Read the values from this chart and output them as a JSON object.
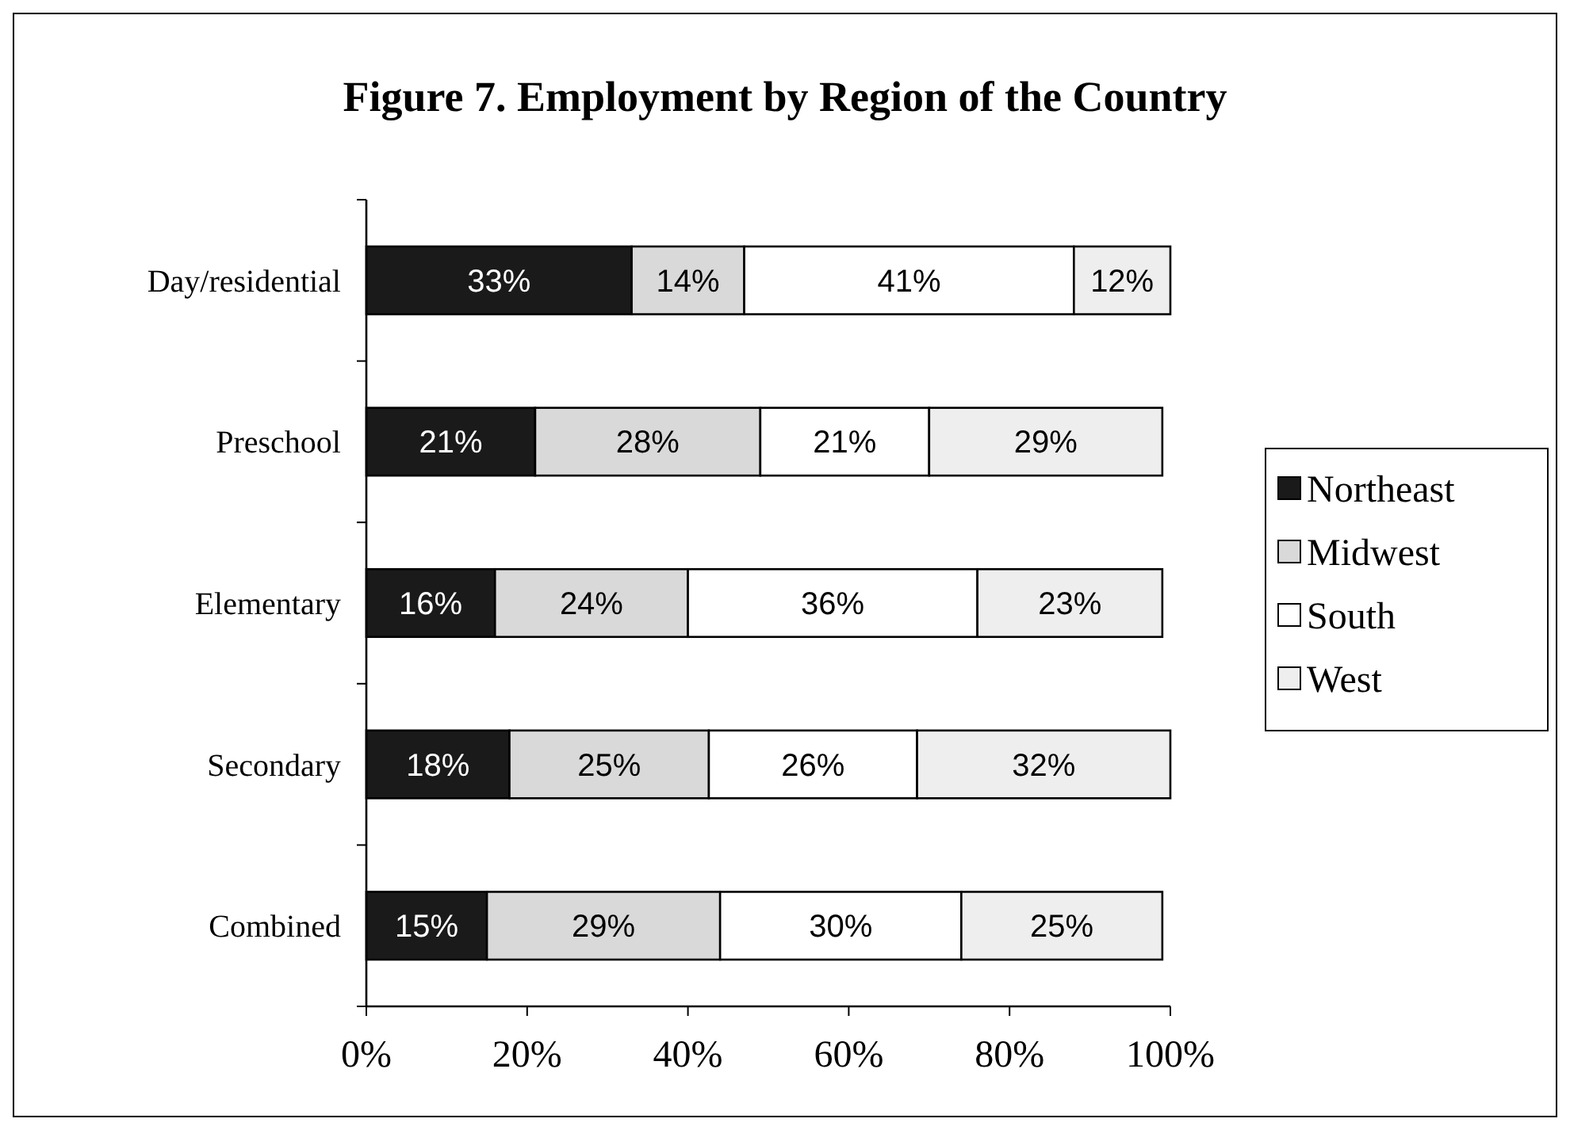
{
  "chart_data": {
    "type": "bar",
    "orientation": "horizontal",
    "stacked": true,
    "title": "Figure 7.  Employment by Region of the Country",
    "categories": [
      "Day/residential",
      "Preschool",
      "Elementary",
      "Secondary",
      "Combined"
    ],
    "series": [
      {
        "name": "Northeast",
        "color": "#1a1a1a",
        "values": [
          33,
          21,
          16,
          17.8,
          15
        ],
        "value_labels": [
          "33%",
          "21%",
          "16%",
          "18%",
          "15%"
        ]
      },
      {
        "name": "Midwest",
        "color": "#d9d9d9",
        "values": [
          14,
          28,
          24,
          24.8,
          29
        ],
        "value_labels": [
          "14%",
          "28%",
          "24%",
          "25%",
          "29%"
        ]
      },
      {
        "name": "South",
        "color": "#ffffff",
        "values": [
          41,
          21,
          36,
          25.9,
          30
        ],
        "value_labels": [
          "41%",
          "21%",
          "36%",
          "26%",
          "30%"
        ]
      },
      {
        "name": "West",
        "color": "#eeeeee",
        "values": [
          12,
          29,
          23,
          31.5,
          25
        ],
        "value_labels": [
          "12%",
          "29%",
          "23%",
          "32%",
          "25%"
        ]
      }
    ],
    "xlim": [
      0,
      100
    ],
    "xticks": [
      {
        "value": 0,
        "label": "0%"
      },
      {
        "value": 20,
        "label": "20%"
      },
      {
        "value": 40,
        "label": "40%"
      },
      {
        "value": 60,
        "label": "60%"
      },
      {
        "value": 80,
        "label": "80%"
      },
      {
        "value": 100,
        "label": "100%"
      }
    ],
    "legend": "right",
    "grid": false
  }
}
